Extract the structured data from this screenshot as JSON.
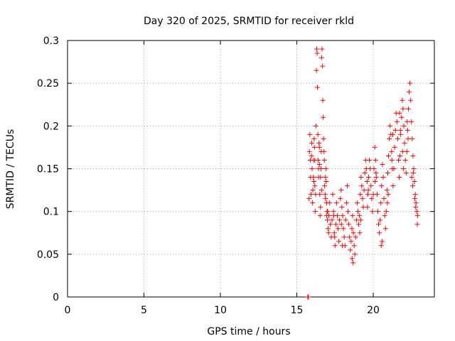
{
  "chart_data": {
    "type": "scatter",
    "title": "Day 320 of 2025, SRMTID for receiver rkld",
    "xlabel": "GPS time / hours",
    "ylabel": "SRMTID / TECUs",
    "xlim": [
      0,
      24
    ],
    "ylim": [
      0,
      0.3
    ],
    "xticks": [
      0,
      5,
      10,
      15,
      20
    ],
    "yticks": [
      0,
      0.05,
      0.1,
      0.15,
      0.2,
      0.25,
      0.3
    ],
    "xtick_labels": [
      "0",
      "5",
      "10",
      "15",
      "20"
    ],
    "ytick_labels": [
      "0",
      "0.05",
      "0.1",
      "0.15",
      "0.2",
      "0.25",
      "0.3"
    ],
    "grid": true,
    "marker": "plus",
    "color": "#ff0000",
    "series": [
      {
        "x": [
          15.72,
          15.74,
          15.76,
          15.8,
          15.82,
          15.85,
          15.88,
          15.9,
          15.93,
          15.96,
          15.98,
          16.0,
          16.03,
          16.05,
          16.08,
          16.1,
          16.13,
          16.15,
          16.18,
          16.2,
          16.23,
          16.25,
          16.28,
          16.3,
          16.33,
          16.35,
          16.38,
          16.4,
          16.42,
          16.45,
          16.48,
          16.5,
          16.52,
          16.55,
          16.58,
          16.6,
          16.62,
          16.65,
          16.68,
          16.7,
          16.72,
          16.75,
          16.78,
          16.8,
          16.82,
          16.85,
          16.88,
          16.9,
          16.92,
          16.95,
          16.98,
          17.0,
          17.05,
          17.1,
          17.15,
          17.2,
          17.25,
          17.3,
          17.35,
          17.4,
          17.45,
          17.5,
          17.55,
          17.6,
          17.65,
          17.7,
          17.75,
          17.8,
          17.85,
          17.9,
          17.95,
          18.0,
          18.05,
          18.1,
          18.15,
          18.2,
          18.25,
          18.3,
          18.35,
          18.4,
          18.45,
          18.5,
          18.55,
          18.6,
          18.65,
          18.7,
          18.75,
          18.8,
          18.85,
          18.9,
          18.95,
          19.0,
          19.05,
          19.1,
          19.15,
          19.2,
          19.25,
          19.3,
          19.35,
          19.4,
          19.45,
          19.5,
          19.55,
          19.6,
          19.65,
          19.7,
          19.75,
          19.8,
          19.85,
          19.9,
          19.95,
          20.0,
          20.05,
          20.1,
          20.15,
          20.2,
          20.25,
          20.3,
          20.35,
          20.4,
          20.45,
          20.5,
          20.55,
          20.6,
          20.65,
          20.7,
          20.75,
          20.8,
          20.85,
          20.9,
          20.95,
          21.0,
          21.05,
          21.1,
          21.15,
          21.2,
          21.25,
          21.3,
          21.35,
          21.4,
          21.45,
          21.5,
          21.55,
          21.6,
          21.65,
          21.7,
          21.75,
          21.8,
          21.85,
          21.9,
          21.95,
          22.0,
          22.05,
          22.1,
          22.15,
          22.2,
          22.25,
          22.3,
          22.35,
          22.4,
          22.45,
          22.5,
          22.55,
          22.6,
          22.65,
          22.7,
          22.75,
          22.8,
          22.85,
          22.9,
          16.12,
          16.18,
          16.42,
          16.48,
          16.55,
          16.62,
          16.88,
          16.95,
          17.02,
          17.08,
          17.42,
          17.48,
          17.92,
          17.98,
          18.62,
          18.68,
          19.12,
          19.18,
          19.62,
          19.68,
          20.12,
          20.18,
          20.52,
          20.58,
          20.92,
          20.98,
          21.22,
          21.28,
          21.72,
          21.78,
          21.92,
          21.98,
          22.22,
          22.28,
          22.52,
          22.58,
          22.72,
          22.78,
          22.62,
          22.88
        ],
        "y": [
          0.0,
          0.0,
          0.0,
          0.115,
          0.17,
          0.19,
          0.16,
          0.14,
          0.12,
          0.165,
          0.18,
          0.15,
          0.11,
          0.125,
          0.14,
          0.16,
          0.185,
          0.175,
          0.13,
          0.1,
          0.12,
          0.2,
          0.265,
          0.29,
          0.285,
          0.245,
          0.19,
          0.16,
          0.14,
          0.18,
          0.155,
          0.12,
          0.095,
          0.105,
          0.15,
          0.17,
          0.28,
          0.29,
          0.27,
          0.23,
          0.21,
          0.185,
          0.17,
          0.16,
          0.13,
          0.12,
          0.14,
          0.15,
          0.135,
          0.11,
          0.1,
          0.09,
          0.08,
          0.095,
          0.11,
          0.085,
          0.07,
          0.09,
          0.12,
          0.1,
          0.075,
          0.06,
          0.085,
          0.11,
          0.095,
          0.08,
          0.065,
          0.09,
          0.115,
          0.125,
          0.105,
          0.095,
          0.08,
          0.07,
          0.06,
          0.09,
          0.11,
          0.13,
          0.1,
          0.085,
          0.07,
          0.055,
          0.065,
          0.08,
          0.095,
          0.075,
          0.06,
          0.05,
          0.07,
          0.09,
          0.11,
          0.1,
          0.085,
          0.095,
          0.12,
          0.14,
          0.13,
          0.115,
          0.105,
          0.125,
          0.145,
          0.16,
          0.15,
          0.135,
          0.12,
          0.14,
          0.16,
          0.15,
          0.13,
          0.115,
          0.1,
          0.12,
          0.15,
          0.175,
          0.16,
          0.14,
          0.12,
          0.1,
          0.085,
          0.075,
          0.09,
          0.11,
          0.13,
          0.155,
          0.14,
          0.115,
          0.095,
          0.08,
          0.1,
          0.125,
          0.145,
          0.165,
          0.185,
          0.2,
          0.19,
          0.17,
          0.15,
          0.13,
          0.15,
          0.175,
          0.195,
          0.215,
          0.205,
          0.185,
          0.16,
          0.14,
          0.165,
          0.19,
          0.21,
          0.23,
          0.22,
          0.2,
          0.18,
          0.16,
          0.145,
          0.17,
          0.195,
          0.22,
          0.24,
          0.25,
          0.23,
          0.205,
          0.185,
          0.165,
          0.15,
          0.135,
          0.12,
          0.11,
          0.1,
          0.095,
          0.135,
          0.16,
          0.15,
          0.175,
          0.14,
          0.125,
          0.115,
          0.095,
          0.1,
          0.075,
          0.095,
          0.07,
          0.085,
          0.06,
          0.045,
          0.04,
          0.075,
          0.09,
          0.105,
          0.125,
          0.135,
          0.145,
          0.06,
          0.065,
          0.11,
          0.12,
          0.16,
          0.19,
          0.215,
          0.195,
          0.17,
          0.15,
          0.205,
          0.185,
          0.14,
          0.13,
          0.115,
          0.105,
          0.145,
          0.085
        ]
      }
    ]
  }
}
